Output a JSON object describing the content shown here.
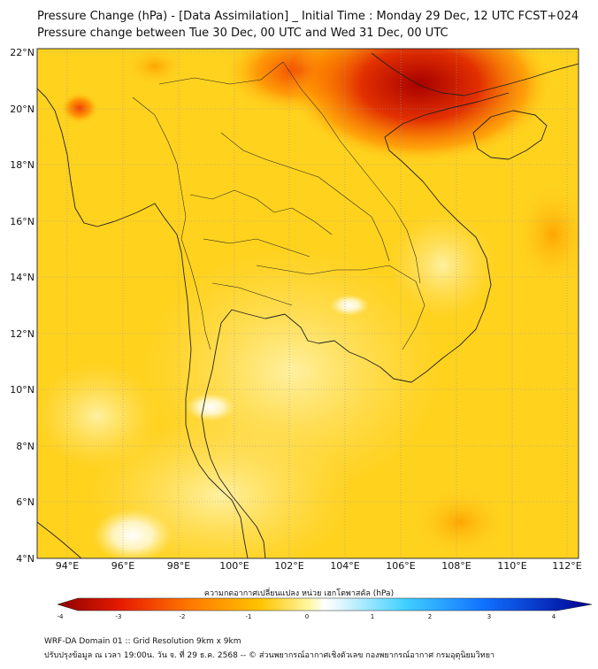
{
  "header": {
    "title": "Pressure Change (hPa) - [Data Assimilation] _ Initial Time : Monday 29 Dec, 12 UTC FCST+024",
    "subtitle": "Pressure change between Tue 30 Dec, 00 UTC and Wed 31 Dec, 00 UTC"
  },
  "map": {
    "lat_labels": [
      "22°N",
      "20°N",
      "18°N",
      "16°N",
      "14°N",
      "12°N",
      "10°N",
      "8°N",
      "6°N",
      "4°N"
    ],
    "lon_labels": [
      "94°E",
      "96°E",
      "98°E",
      "100°E",
      "102°E",
      "104°E",
      "106°E",
      "108°E",
      "110°E",
      "112°E"
    ],
    "lat_range": [
      4,
      22
    ],
    "lon_range": [
      93,
      112.5
    ],
    "field_colors": {
      "base": "#ffd21e",
      "light": "#fff2a8",
      "orange": "#ffa000",
      "red": "#e83000",
      "dark_red": "#a80000",
      "white": "#ffffff"
    },
    "coast_color": "#222222",
    "grid_color": "#9a9a9a"
  },
  "colorbar": {
    "title": "ความกดอากาศเปลี่ยนแปลง หน่วย เฮกโตพาสคัล (hPa)",
    "tick_labels": [
      "-4",
      "-3",
      "-2",
      "-1",
      "0",
      "1",
      "2",
      "3",
      "4"
    ],
    "range": [
      -4,
      4
    ]
  },
  "footer": {
    "line1": "WRF-DA Domain 01 :: Grid Resolution 9km x 9km",
    "line2": "ปรับปรุงข้อมูล ณ เวลา 19:00น. วัน จ. ที่ 29 ธ.ค. 2568 -- © ส่วนพยากรณ์อากาศเชิงตัวเลข กองพยากรณ์อากาศ กรมอุตุนิยมวิทยา"
  }
}
